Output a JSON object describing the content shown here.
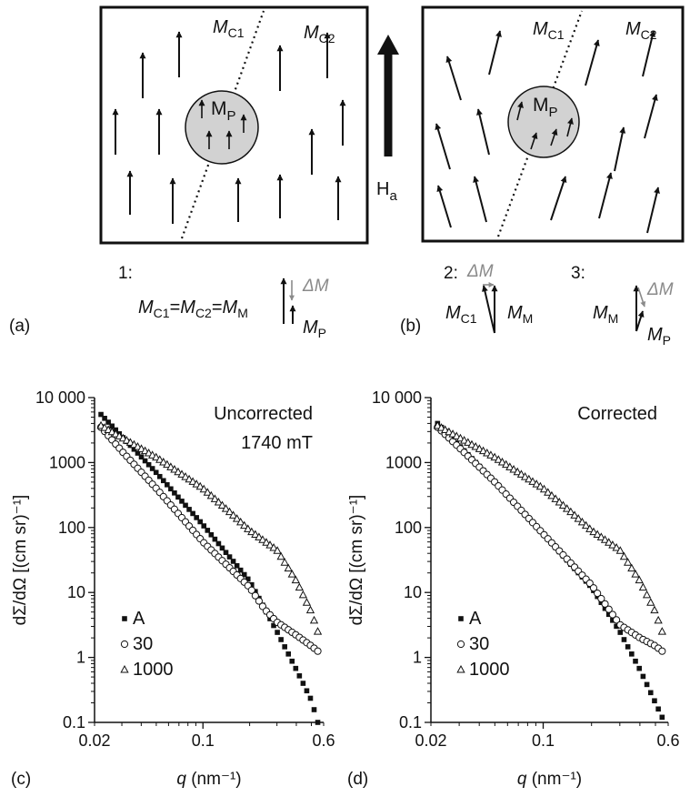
{
  "panels": {
    "a": {
      "label": "(a)",
      "mc1": "M",
      "mc1_sub": "C1",
      "mc2": "M",
      "mc2_sub": "C2",
      "mp": "M",
      "mp_sub": "P",
      "caption_num": "1:",
      "equation_parts": [
        "M",
        "C1",
        "=",
        "M",
        "C2",
        "=",
        "M",
        "M"
      ],
      "delta_m": "ΔM",
      "mp_label": "M",
      "mp_label_sub": "P"
    },
    "field": {
      "symbol": "H",
      "sub": "a"
    },
    "b": {
      "label": "(b)",
      "mc1": "M",
      "mc1_sub": "C1",
      "mc2": "M",
      "mc2_sub": "C2",
      "mp": "M",
      "mp_sub": "P",
      "case2_num": "2:",
      "case2_delta": "ΔM",
      "case2_mc1": "M",
      "case2_mc1_sub": "C1",
      "case2_mm": "M",
      "case2_mm_sub": "M",
      "case3_num": "3:",
      "case3_delta": "ΔM",
      "case3_mm": "M",
      "case3_mm_sub": "M",
      "case3_mp": "M",
      "case3_mp_sub": "P"
    }
  },
  "chart_data": [
    {
      "panel_label": "(c)",
      "type": "scatter",
      "annotation_lines": [
        "Uncorrected",
        "1740 mT"
      ],
      "xlabel_var": "q",
      "xlabel_unit": " (nm⁻¹)",
      "ylabel": "dΣ/dΩ [(cm sr)⁻¹]",
      "xscale": "log",
      "yscale": "log",
      "xlim": [
        0.02,
        0.6
      ],
      "ylim": [
        0.1,
        10000
      ],
      "xticks": [
        0.02,
        0.1,
        0.6
      ],
      "xtick_labels": [
        "0.02",
        "0.1",
        "0.6"
      ],
      "yticks": [
        0.1,
        1,
        10,
        100,
        1000,
        10000
      ],
      "ytick_labels": [
        "0.1",
        "1",
        "10",
        "100",
        "1000",
        "10 000"
      ],
      "legend_placement": "bottom-left",
      "series": [
        {
          "name": "A",
          "marker": "square",
          "x": [
            0.022,
            0.05,
            0.1,
            0.2,
            0.3,
            0.4,
            0.5,
            0.55
          ],
          "y": [
            5500,
            700,
            110,
            15,
            2.5,
            0.65,
            0.22,
            0.1
          ]
        },
        {
          "name": "30",
          "marker": "circle",
          "x": [
            0.022,
            0.03,
            0.05,
            0.1,
            0.2,
            0.25,
            0.3,
            0.4,
            0.5,
            0.55
          ],
          "y": [
            3500,
            1500,
            400,
            60,
            12,
            5.5,
            3.5,
            2.2,
            1.5,
            1.25
          ]
        },
        {
          "name": "1000",
          "marker": "triangle",
          "x": [
            0.022,
            0.05,
            0.1,
            0.15,
            0.2,
            0.3,
            0.4,
            0.5,
            0.55
          ],
          "y": [
            3700,
            1200,
            400,
            170,
            90,
            45,
            15,
            5,
            2.5
          ]
        }
      ]
    },
    {
      "panel_label": "(d)",
      "type": "scatter",
      "annotation_lines": [
        "Corrected"
      ],
      "xlabel_var": "q",
      "xlabel_unit": " (nm⁻¹)",
      "ylabel": "dΣ/dΩ [(cm sr)⁻¹]",
      "xscale": "log",
      "yscale": "log",
      "xlim": [
        0.02,
        0.6
      ],
      "ylim": [
        0.1,
        10000
      ],
      "xticks": [
        0.02,
        0.1,
        0.6
      ],
      "xtick_labels": [
        "0.02",
        "0.1",
        "0.6"
      ],
      "yticks": [
        0.1,
        1,
        10,
        100,
        1000,
        10000
      ],
      "ytick_labels": [
        "0.1",
        "1",
        "10",
        "100",
        "1000",
        "10 000"
      ],
      "legend_placement": "bottom-left",
      "series": [
        {
          "name": "A",
          "marker": "square",
          "x": [
            0.022,
            0.05,
            0.1,
            0.2,
            0.3,
            0.4,
            0.5,
            0.55
          ],
          "y": [
            4000,
            500,
            80,
            12,
            2.5,
            0.65,
            0.2,
            0.12
          ]
        },
        {
          "name": "30",
          "marker": "circle",
          "x": [
            0.022,
            0.03,
            0.05,
            0.1,
            0.2,
            0.25,
            0.3,
            0.4,
            0.5,
            0.55
          ],
          "y": [
            3500,
            1700,
            500,
            80,
            13,
            6,
            3.2,
            2,
            1.5,
            1.25
          ]
        },
        {
          "name": "1000",
          "marker": "triangle",
          "x": [
            0.022,
            0.05,
            0.1,
            0.15,
            0.2,
            0.3,
            0.4,
            0.5,
            0.55
          ],
          "y": [
            3700,
            1200,
            400,
            170,
            90,
            45,
            15,
            5,
            2.5
          ]
        }
      ]
    }
  ]
}
